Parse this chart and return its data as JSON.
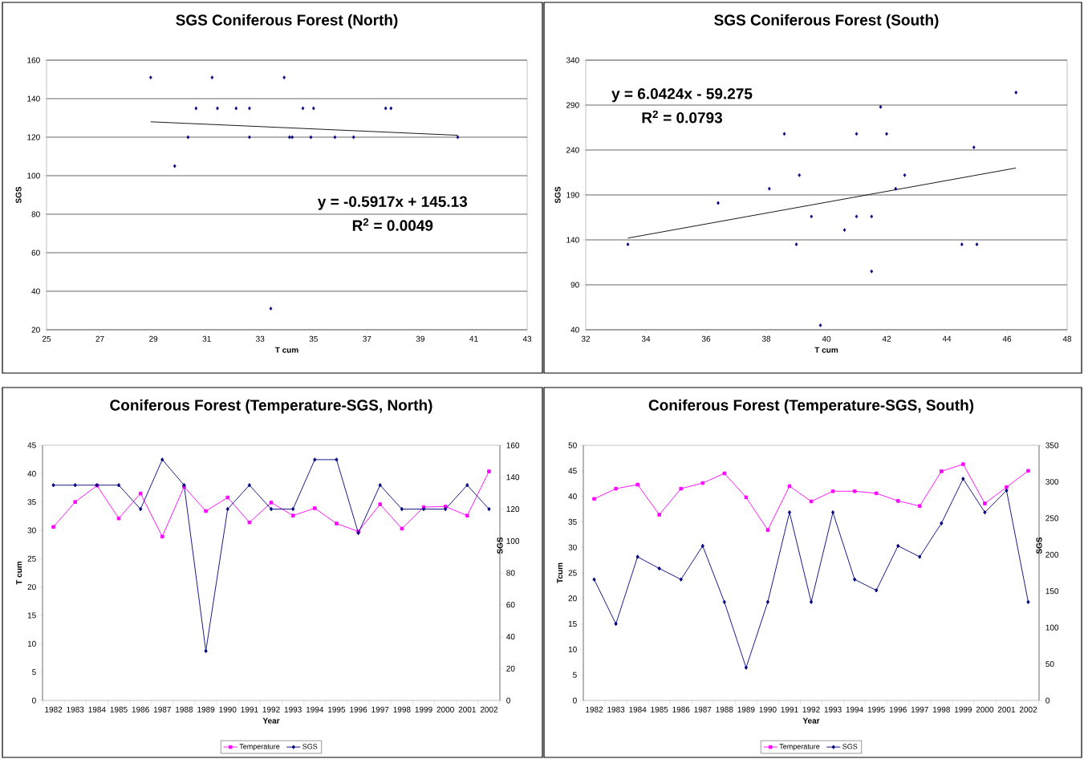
{
  "chart_data": [
    {
      "type": "scatter",
      "title": "SGS Coniferous Forest (North)",
      "xlabel": "T cum",
      "ylabel": "SGS",
      "xlim": [
        25,
        43
      ],
      "xticks": [
        25,
        27,
        29,
        31,
        33,
        35,
        37,
        39,
        41,
        43
      ],
      "ylim": [
        20,
        160
      ],
      "yticks": [
        20,
        40,
        60,
        80,
        100,
        120,
        140,
        160
      ],
      "grid": "y",
      "marker": "diamond",
      "series": [
        {
          "color": "#000080",
          "x": [
            30.6,
            35.0,
            37.9,
            32.1,
            36.5,
            28.9,
            37.7,
            33.4,
            35.8,
            31.4,
            34.9,
            32.6,
            33.9,
            31.2,
            29.8,
            34.6,
            30.3,
            34.1,
            34.2,
            32.6,
            40.4
          ],
          "values": [
            135,
            135,
            135,
            135,
            120,
            151,
            135,
            31,
            120,
            135,
            120,
            120,
            151,
            151,
            105,
            135,
            120,
            120,
            120,
            135,
            120
          ]
        },
        {
          "type": "line",
          "marker": "none",
          "color": "#000000",
          "x": [
            28.9,
            40.4
          ],
          "values": [
            128,
            121
          ]
        }
      ],
      "annotations": [
        "y = -0.5917x + 145.13",
        "R$^{2}$ = 0.0049"
      ]
    },
    {
      "type": "scatter",
      "title": "SGS Coniferous Forest (South)",
      "xlabel": "T cum",
      "ylabel": "SGS",
      "xlim": [
        32,
        48
      ],
      "xticks": [
        32,
        34,
        36,
        38,
        40,
        42,
        44,
        46,
        48
      ],
      "ylim": [
        40,
        340
      ],
      "yticks": [
        40,
        90,
        140,
        190,
        240,
        290,
        340
      ],
      "grid": "y",
      "marker": "diamond",
      "series": [
        {
          "color": "#000080",
          "x": [
            39.5,
            41.5,
            42.3,
            36.4,
            41.5,
            42.6,
            44.5,
            39.8,
            33.4,
            42.0,
            39.0,
            41.0,
            41.0,
            40.6,
            39.1,
            38.1,
            44.9,
            46.3,
            38.6,
            41.8,
            45.0
          ],
          "values": [
            166,
            105,
            197,
            181,
            166,
            212,
            135,
            45,
            135,
            258,
            135,
            258,
            166,
            151,
            212,
            197,
            243,
            304,
            258,
            288,
            135
          ]
        },
        {
          "type": "line",
          "marker": "none",
          "color": "#000000",
          "x": [
            33.4,
            46.3
          ],
          "values": [
            142,
            220
          ]
        }
      ],
      "annotations": [
        "y = 6.0424x - 59.275",
        "R$^{2}$ = 0.0793"
      ]
    },
    {
      "type": "line",
      "title": "Coniferous Forest (Temperature-SGS, North)",
      "xlabel": "Year",
      "ylabel": "T cum",
      "y2label": "SGS",
      "categories": [
        "1982",
        "1983",
        "1984",
        "1985",
        "1986",
        "1987",
        "1988",
        "1989",
        "1990",
        "1991",
        "1992",
        "1993",
        "1994",
        "1995",
        "1996",
        "1997",
        "1998",
        "1999",
        "2000",
        "2001",
        "2002"
      ],
      "ylim": [
        0,
        45
      ],
      "yticks": [
        0,
        5,
        10,
        15,
        20,
        25,
        30,
        35,
        40,
        45
      ],
      "y2lim": [
        0,
        160
      ],
      "y2ticks": [
        0,
        20,
        40,
        60,
        80,
        100,
        120,
        140,
        160
      ],
      "legend": "bottom",
      "series": [
        {
          "name": "Temperature",
          "color": "#ff00ff",
          "marker": "square",
          "values": [
            30.6,
            35.0,
            37.9,
            32.1,
            36.5,
            28.9,
            37.7,
            33.4,
            35.8,
            31.4,
            34.9,
            32.6,
            33.9,
            31.2,
            29.8,
            34.6,
            30.3,
            34.1,
            34.2,
            32.6,
            40.4
          ]
        },
        {
          "name": "SGS",
          "color": "#000080",
          "marker": "diamond",
          "axis": "y2",
          "values": [
            135,
            135,
            135,
            135,
            120,
            151,
            135,
            31,
            120,
            135,
            120,
            120,
            151,
            151,
            105,
            135,
            120,
            120,
            120,
            135,
            120
          ]
        }
      ]
    },
    {
      "type": "line",
      "title": "Coniferous Forest (Temperature-SGS, South)",
      "xlabel": "Year",
      "ylabel": "Tcum",
      "y2label": "SGS",
      "categories": [
        "1982",
        "1983",
        "1984",
        "1985",
        "1986",
        "1987",
        "1988",
        "1989",
        "1990",
        "1991",
        "1992",
        "1993",
        "1994",
        "1995",
        "1996",
        "1997",
        "1998",
        "1999",
        "2000",
        "2001",
        "2002"
      ],
      "ylim": [
        0,
        50
      ],
      "yticks": [
        0,
        5,
        10,
        15,
        20,
        25,
        30,
        35,
        40,
        45,
        50
      ],
      "y2lim": [
        0,
        350
      ],
      "y2ticks": [
        0,
        50,
        100,
        150,
        200,
        250,
        300,
        350
      ],
      "legend": "bottom",
      "series": [
        {
          "name": "Temperature",
          "color": "#ff00ff",
          "marker": "square",
          "values": [
            39.5,
            41.5,
            42.3,
            36.4,
            41.5,
            42.6,
            44.5,
            39.8,
            33.4,
            42.0,
            39.0,
            41.0,
            41.0,
            40.6,
            39.1,
            38.1,
            44.9,
            46.3,
            38.6,
            41.8,
            45.0
          ]
        },
        {
          "name": "SGS",
          "color": "#000080",
          "marker": "diamond",
          "axis": "y2",
          "values": [
            166,
            105,
            197,
            181,
            166,
            212,
            135,
            45,
            135,
            258,
            135,
            258,
            166,
            151,
            212,
            197,
            243,
            304,
            258,
            288,
            135
          ]
        }
      ]
    }
  ]
}
